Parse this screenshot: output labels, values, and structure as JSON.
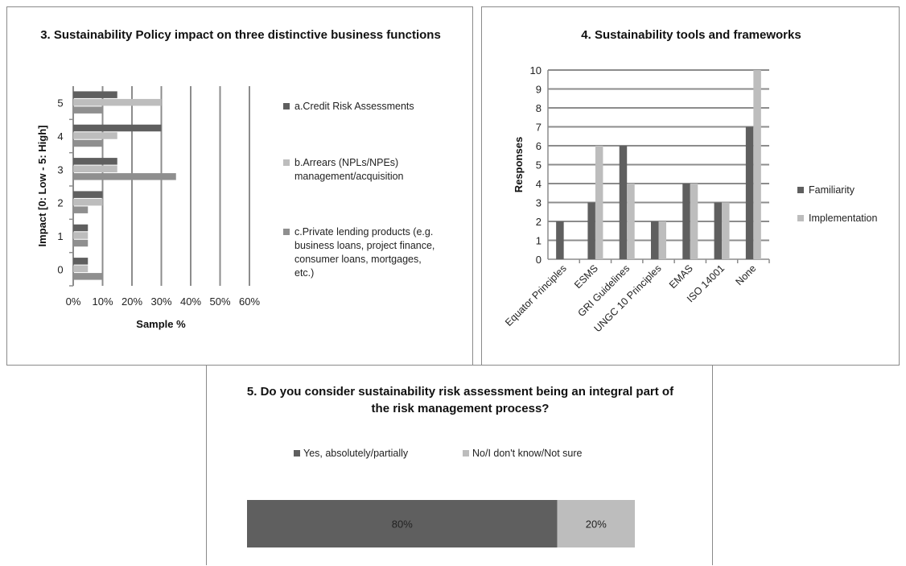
{
  "colors": {
    "dark": "#5f5f5f",
    "light": "#bdbdbd",
    "mid": "#8f8f8f",
    "grid": "#8c8c8c"
  },
  "chart_data": [
    {
      "type": "bar",
      "orientation": "horizontal",
      "title": "3. Sustainability Policy impact on  three distinctive business functions",
      "xlabel": "Sample  %",
      "ylabel": "Impact [0: Low - 5: High]",
      "categories": [
        "0",
        "1",
        "2",
        "3",
        "4",
        "5"
      ],
      "xticks": [
        "0%",
        "10%",
        "20%",
        "30%",
        "40%",
        "50%",
        "60%"
      ],
      "xlim": [
        0,
        60
      ],
      "grid": true,
      "legend_position": "right",
      "series": [
        {
          "name": "a.Credit Risk Assessments",
          "values": [
            5,
            5,
            10,
            15,
            30,
            15
          ]
        },
        {
          "name": "b.Arrears (NPLs/NPEs) management/acquisition",
          "values": [
            5,
            5,
            10,
            15,
            15,
            30
          ]
        },
        {
          "name": "c.Private lending products (e.g. business loans, project finance, consumer loans, mortgages, etc.)",
          "values": [
            10,
            5,
            5,
            35,
            10,
            10
          ]
        }
      ]
    },
    {
      "type": "bar",
      "title": "4. Sustainability tools and frameworks",
      "ylabel": "Responses",
      "categories": [
        "Equator Principles",
        "ESMS",
        "GRI Guidelines",
        "UNGC 10 Principles",
        "EMAS",
        "ISO 14001",
        "None"
      ],
      "ylim": [
        0,
        10
      ],
      "yticks": [
        "0",
        "1",
        "2",
        "3",
        "4",
        "5",
        "6",
        "7",
        "8",
        "9",
        "10"
      ],
      "grid": true,
      "legend_position": "right",
      "series": [
        {
          "name": "Familiarity",
          "values": [
            2,
            3,
            6,
            2,
            4,
            3,
            7
          ]
        },
        {
          "name": "Implementation",
          "values": [
            0,
            6,
            4,
            2,
            4,
            3,
            10
          ]
        }
      ]
    },
    {
      "type": "bar",
      "stacked": true,
      "orientation": "horizontal",
      "title": "5. Do you consider sustainability risk assessment being an integral part of the risk management process?",
      "legend_position": "top",
      "series": [
        {
          "name": "Yes, absolutely/partially",
          "values": [
            80
          ],
          "label": "80%"
        },
        {
          "name": "No/I don't know/Not sure",
          "values": [
            20
          ],
          "label": "20%"
        }
      ]
    }
  ],
  "legend3": [
    "a.Credit Risk Assessments",
    "b.Arrears (NPLs/NPEs) management/acquisition",
    "c.Private lending products (e.g. business loans, project finance, consumer loans, mortgages, etc.)"
  ],
  "legend4": [
    "Familiarity",
    "Implementation"
  ],
  "legend5": [
    "Yes, absolutely/partially",
    "No/I don't know/Not sure"
  ]
}
